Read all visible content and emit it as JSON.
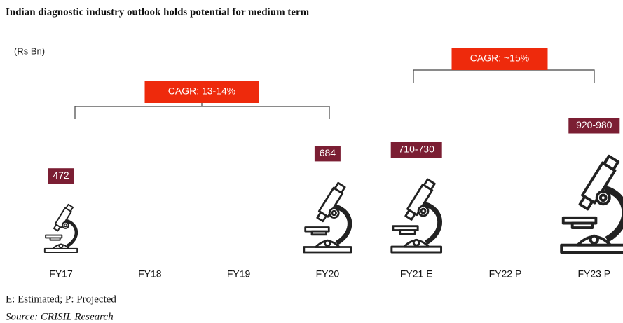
{
  "chart_data": {
    "type": "pictograph",
    "title": "Indian diagnostic industry outlook holds potential for medium term",
    "unit_label": "(Rs Bn)",
    "categories": [
      "FY17",
      "FY18",
      "FY19",
      "FY20",
      "FY21 E",
      "FY22 P",
      "FY23 P"
    ],
    "values": [
      472,
      null,
      null,
      684,
      720,
      null,
      950
    ],
    "value_labels": [
      "472",
      null,
      null,
      "684",
      "710-730",
      null,
      "920-980"
    ],
    "label_color": "#7b1e33",
    "annotations": [
      "CAGR: 13-14%",
      "CAGR: ~15%"
    ],
    "annotation_color": "#ee2a0c",
    "footnotes": [
      "E: Estimated; P: Projected",
      "Source: CRISIL Research"
    ]
  }
}
